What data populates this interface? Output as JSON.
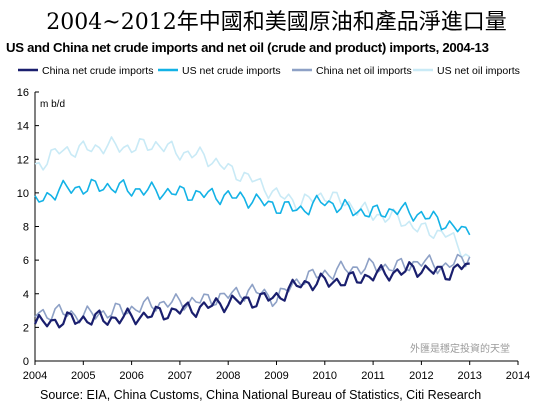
{
  "title": "2004~2012年中國和美國原油和產品淨進口量",
  "subtitle": "US and China net crude imports and net oil (crude and product) imports, 2004-13",
  "source": "Source: EIA, China Customs, China National Bureau of Statistics, Citi Research",
  "watermark": "外匯是穩定投資的天堂",
  "chart_data": {
    "type": "line",
    "ylabel": "m b/d",
    "ylim": [
      0,
      16
    ],
    "xlim": [
      2004,
      2014
    ],
    "yticks": [
      "0",
      "2",
      "4",
      "6",
      "8",
      "10",
      "12",
      "14",
      "16"
    ],
    "xticks": [
      "2004",
      "2005",
      "2006",
      "2007",
      "2008",
      "2009",
      "2010",
      "2011",
      "2012",
      "2013",
      "2014"
    ],
    "grid": false,
    "legend_position": "top",
    "x": [
      2004,
      2004.5,
      2005,
      2005.5,
      2006,
      2006.5,
      2007,
      2007.5,
      2008,
      2008.5,
      2009,
      2009.5,
      2010,
      2010.5,
      2011,
      2011.5,
      2012,
      2012.5,
      2013
    ],
    "series": [
      {
        "name": "China net crude imports",
        "color": "#1a1f6e",
        "width": 2.2,
        "values": [
          2.2,
          2.4,
          2.5,
          2.5,
          2.6,
          2.8,
          3.0,
          3.2,
          3.5,
          3.6,
          3.8,
          4.6,
          4.7,
          4.8,
          5.1,
          5.3,
          5.5,
          5.2,
          5.8
        ]
      },
      {
        "name": "US net crude imports",
        "color": "#13b2e6",
        "width": 1.6,
        "values": [
          9.4,
          10.2,
          10.3,
          10.4,
          10.2,
          10.1,
          10.0,
          9.9,
          9.8,
          9.6,
          9.2,
          9.0,
          9.5,
          9.0,
          8.8,
          9.0,
          8.7,
          8.2,
          7.5
        ]
      },
      {
        "name": "China net oil imports",
        "color": "#8ea1c6",
        "width": 1.6,
        "values": [
          2.8,
          2.9,
          2.7,
          2.9,
          3.1,
          3.4,
          3.5,
          3.6,
          3.9,
          4.2,
          3.7,
          4.9,
          5.2,
          5.5,
          5.6,
          5.6,
          5.9,
          5.6,
          6.2
        ]
      },
      {
        "name": "US net oil imports",
        "color": "#c9eaf6",
        "width": 1.6,
        "values": [
          11.5,
          12.5,
          12.6,
          12.8,
          12.7,
          12.9,
          12.4,
          12.2,
          11.4,
          10.8,
          9.9,
          9.4,
          9.9,
          9.3,
          8.7,
          8.5,
          7.8,
          7.6,
          6.2
        ]
      }
    ]
  }
}
